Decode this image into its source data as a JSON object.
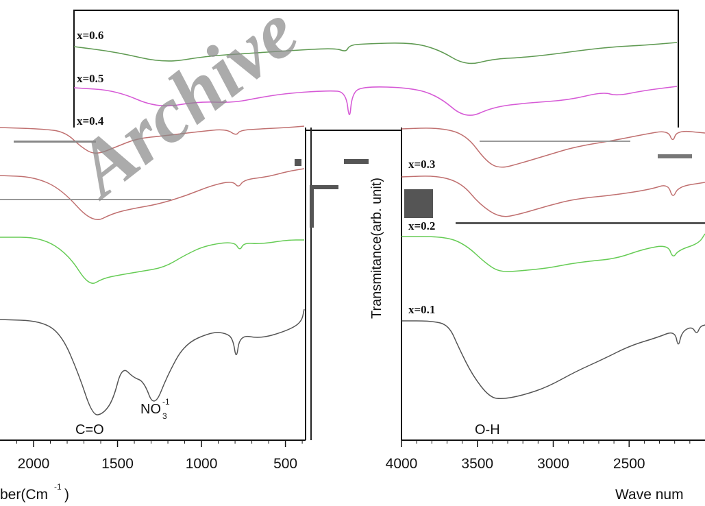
{
  "chart_data": [
    {
      "type": "line",
      "panel": "top",
      "series_labels": [
        "x=0.6",
        "x=0.5",
        "x=0.4"
      ],
      "colors": {
        "x=0.6": "#5f9a52",
        "x=0.5": "#d65ad6",
        "x=0.4": "#6a5a9a"
      }
    },
    {
      "type": "line",
      "panel": "left",
      "xlabel": "ber(Cm",
      "xlabel_sup": "-1",
      "xlabel_close": ")",
      "xticks": [
        "2000",
        "1500",
        "1000",
        "500"
      ],
      "x_values": [
        2000,
        1500,
        1000,
        500
      ],
      "xlim": [
        2200,
        380
      ],
      "annotations": {
        "co": "C=O",
        "no3_main": "NO",
        "no3_sub": "3",
        "no3_sup": "-1"
      },
      "series": [
        {
          "name": "x=0.4",
          "color": "#c07070",
          "offset": 150
        },
        {
          "name": "x=0.3",
          "color": "#c07070",
          "offset": 235
        },
        {
          "name": "x=0.2",
          "color": "#66cc55",
          "offset": 320
        },
        {
          "name": "x=0.1",
          "color": "#555555",
          "offset": 440
        }
      ]
    },
    {
      "type": "line",
      "panel": "right",
      "ylabel": "Transmitance(arb. unit)",
      "xlabel": "Wave num",
      "xticks": [
        "4000",
        "3500",
        "3000",
        "2500"
      ],
      "x_values": [
        4000,
        3500,
        3000,
        2500
      ],
      "xlim": [
        4000,
        2000
      ],
      "annotations": {
        "oh": "O-H"
      },
      "series_labels": [
        "x=0.3",
        "x=0.2",
        "x=0.1"
      ],
      "series": [
        {
          "name": "x=0.4",
          "color": "#c07070"
        },
        {
          "name": "x=0.3",
          "color": "#c07070"
        },
        {
          "name": "x=0.2",
          "color": "#66cc55"
        },
        {
          "name": "x=0.1",
          "color": "#555555"
        }
      ]
    }
  ],
  "watermark": "Archive"
}
